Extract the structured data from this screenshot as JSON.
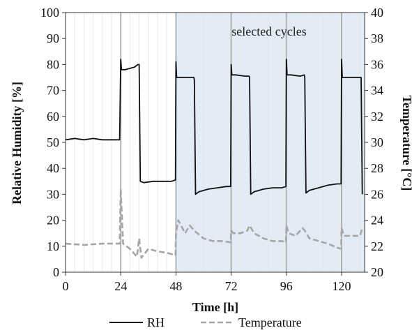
{
  "chart_data": {
    "type": "line",
    "title": "",
    "xlabel": "Time [h]",
    "ylabel": "Relative Humidity [%]",
    "y2label": "Temperature [°C]",
    "xlim": [
      0,
      130
    ],
    "ylim": [
      0,
      100
    ],
    "y2lim": [
      20,
      40
    ],
    "x_ticks": [
      0,
      24,
      48,
      72,
      96,
      120
    ],
    "y_ticks": [
      0,
      10,
      20,
      30,
      40,
      50,
      60,
      70,
      80,
      90,
      100
    ],
    "y2_ticks": [
      20,
      22,
      24,
      26,
      28,
      30,
      32,
      34,
      36,
      38,
      40
    ],
    "grid": true,
    "legend_position": "bottom",
    "highlight": {
      "x_start": 48,
      "x_end": 130,
      "label": "selected cycles",
      "color": "#e3ecf6"
    },
    "series": [
      {
        "name": "RH",
        "axis": "left",
        "color": "#111111",
        "style": "solid",
        "x": [
          0,
          4,
          8,
          12,
          16,
          20,
          23.5,
          24,
          24.3,
          26,
          30,
          31.5,
          32,
          32.5,
          34,
          38,
          42,
          46,
          47.8,
          48,
          48.3,
          50,
          54,
          55.8,
          56,
          56.5,
          58,
          62,
          66,
          70,
          71.8,
          72,
          72.3,
          74,
          78,
          79.8,
          80,
          80.5,
          82,
          86,
          90,
          94,
          95.8,
          96,
          96.3,
          98,
          102,
          103.8,
          104,
          104.5,
          106,
          110,
          114,
          118,
          119.8,
          120,
          120.3,
          122,
          126,
          128.5,
          129
        ],
        "values": [
          51,
          51.5,
          51,
          51.5,
          51,
          51,
          51,
          82,
          78,
          78,
          79,
          80,
          80,
          35,
          34.5,
          35,
          35,
          35,
          35.5,
          81,
          75,
          75,
          75,
          75,
          74,
          30,
          31,
          32,
          32.5,
          33,
          33,
          80,
          76,
          76,
          75.5,
          75.5,
          75,
          30,
          31,
          32,
          32.5,
          32.5,
          33,
          82,
          76,
          76,
          75.5,
          76,
          75,
          30.5,
          31.5,
          32.5,
          33.5,
          34,
          34,
          82,
          75,
          75,
          75,
          75,
          30
        ]
      },
      {
        "name": "Temperature",
        "axis": "right",
        "color": "#a6a6a6",
        "style": "dashed",
        "x": [
          0,
          8,
          16,
          23.5,
          24,
          25,
          28,
          31,
          32,
          33,
          36,
          40,
          44,
          47.8,
          48,
          49,
          52,
          54,
          56,
          60,
          64,
          68,
          71.8,
          72,
          73,
          76,
          79,
          80,
          82,
          86,
          90,
          94,
          95.8,
          96,
          97,
          100,
          103,
          104,
          106,
          110,
          114,
          118,
          119.8,
          120,
          121,
          124,
          128,
          129
        ],
        "values": [
          22.2,
          22.1,
          22.2,
          22.2,
          26.4,
          22.2,
          21.8,
          21.2,
          22.6,
          21.1,
          21.8,
          21.6,
          21.5,
          21.3,
          23.0,
          24.0,
          23.0,
          23.6,
          23.2,
          22.6,
          22.4,
          22.4,
          22.3,
          23.2,
          23.0,
          23.0,
          23.2,
          23.6,
          23.0,
          22.6,
          22.4,
          22.4,
          22.3,
          23.6,
          23.0,
          22.8,
          23.4,
          23.2,
          22.6,
          22.4,
          22.2,
          21.9,
          21.8,
          23.4,
          22.8,
          22.8,
          22.8,
          23.4
        ]
      }
    ]
  }
}
